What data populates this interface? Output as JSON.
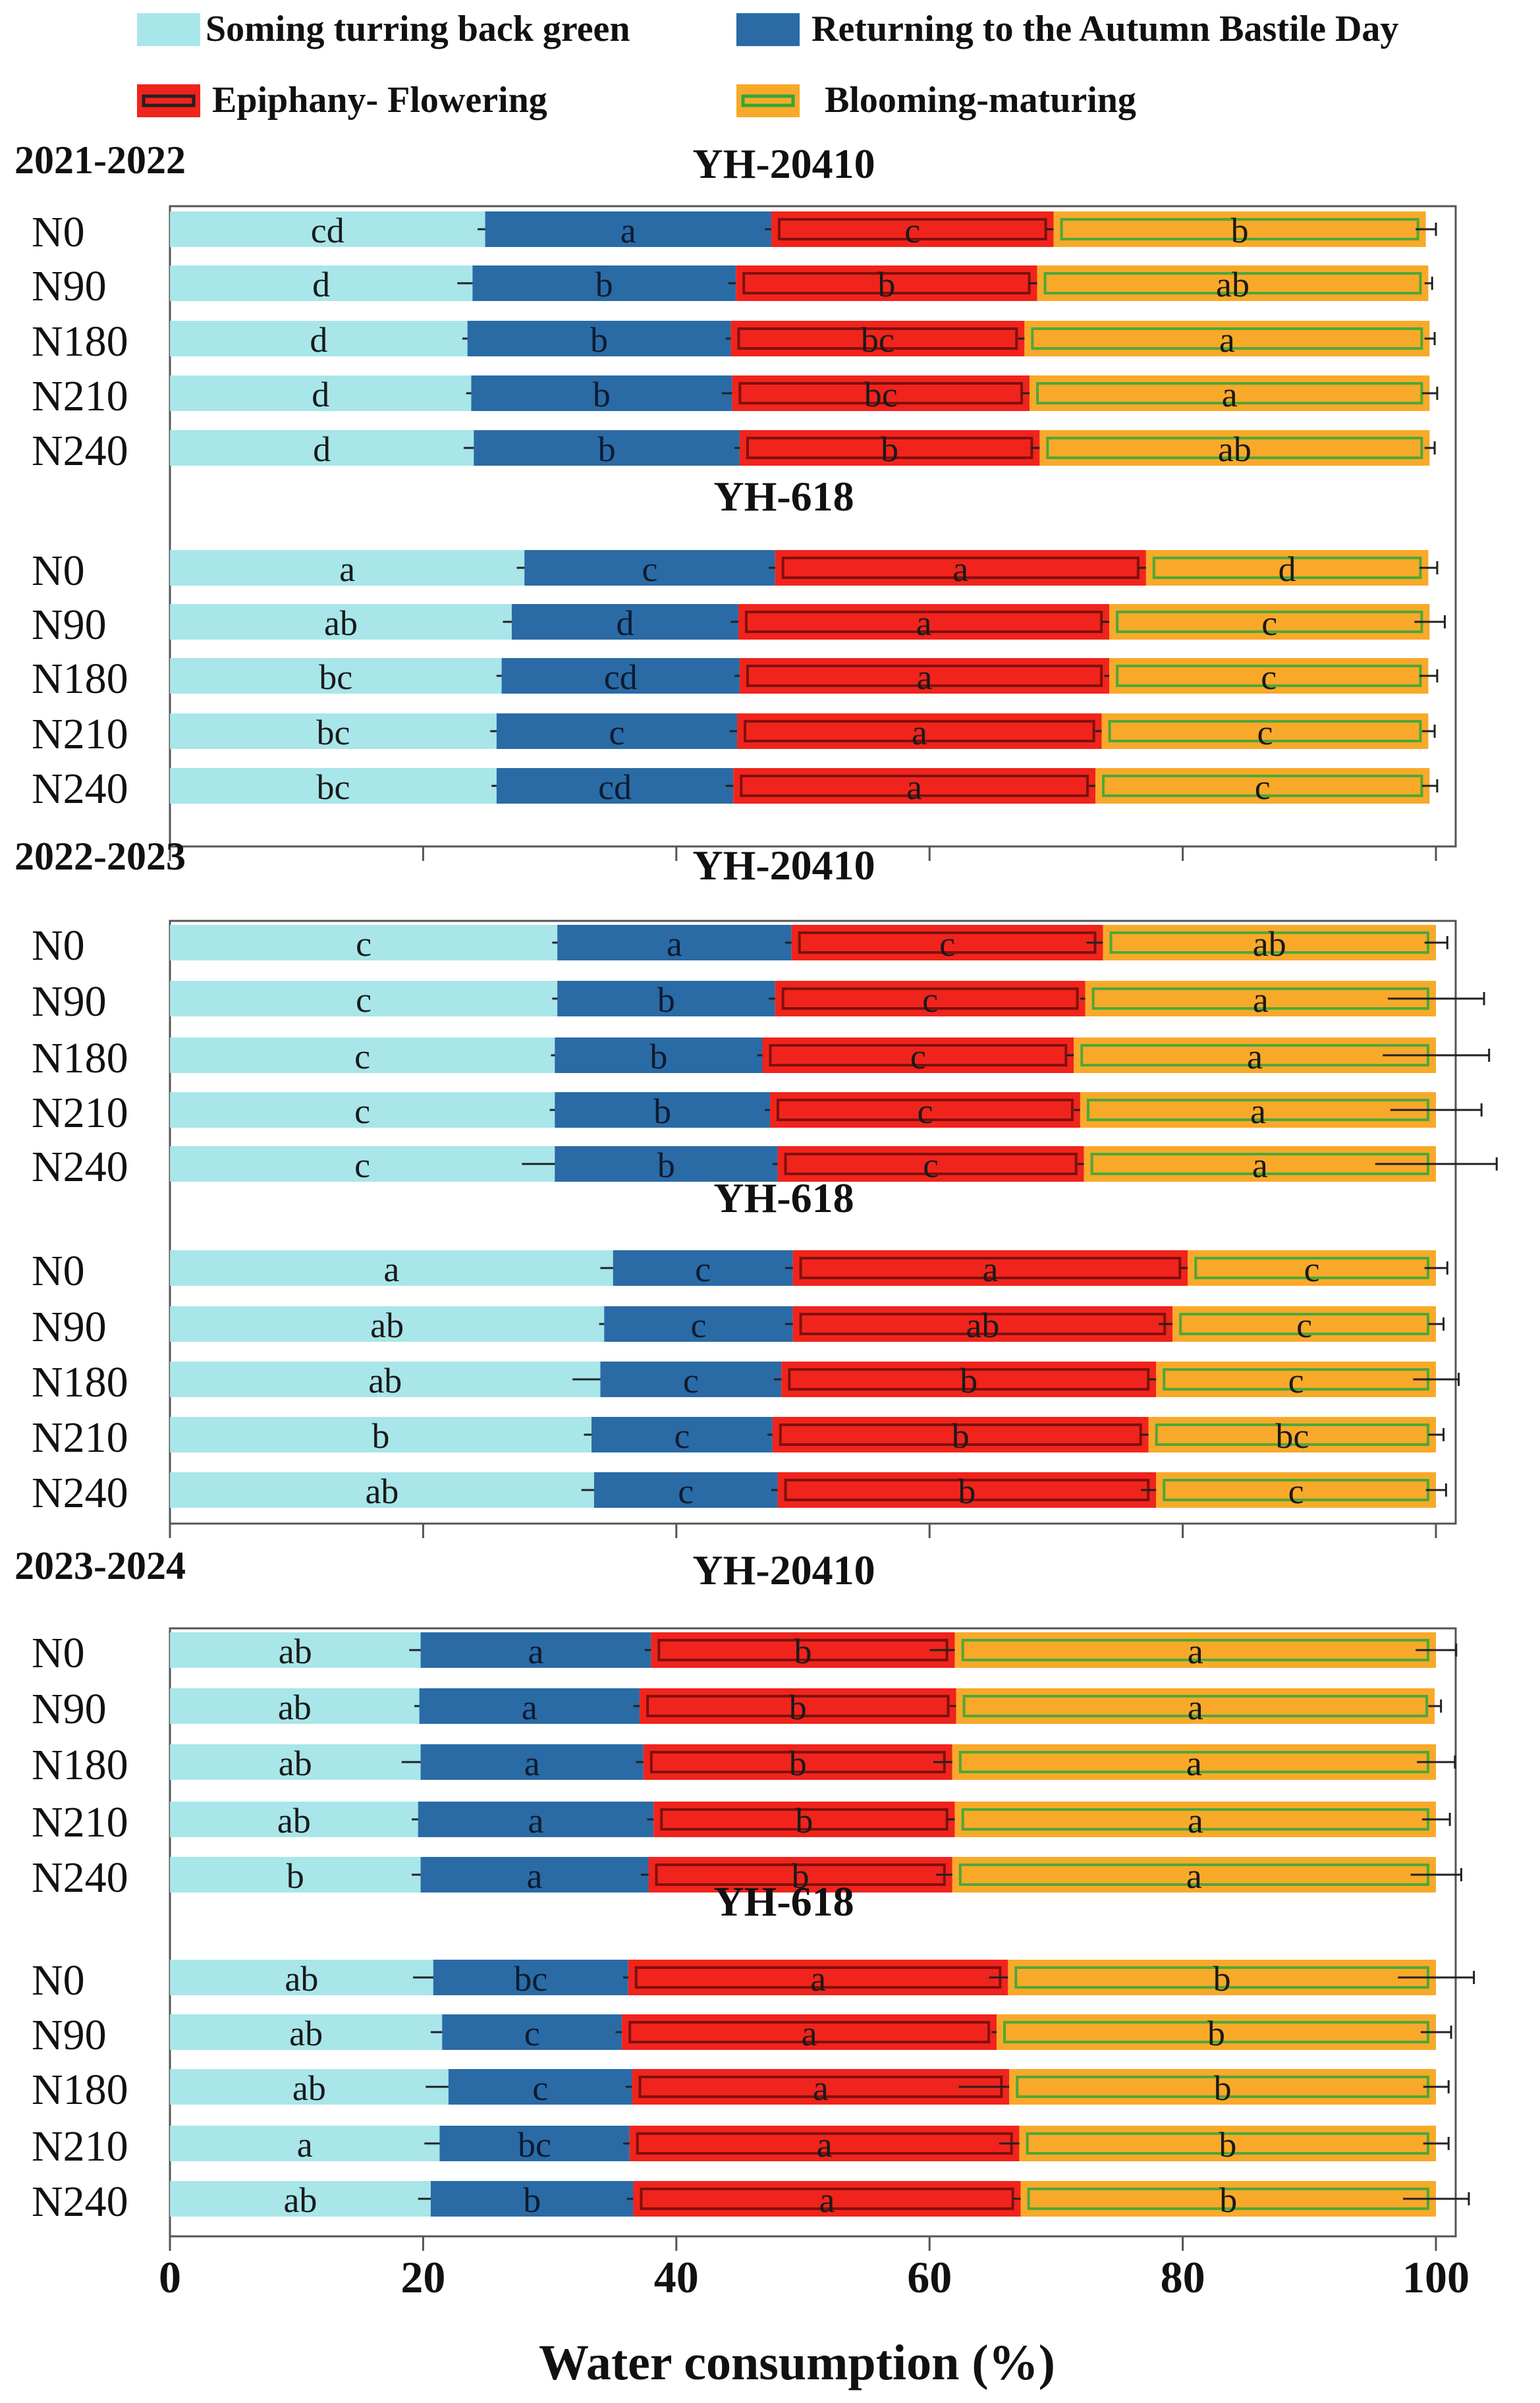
{
  "chart_data": {
    "type": "bar",
    "orientation": "horizontal",
    "stacked": true,
    "xlabel": "Water consumption (%)",
    "xlim": [
      0,
      100
    ],
    "xticks": [
      "0",
      "20",
      "40",
      "60",
      "80",
      "100"
    ],
    "legend": [
      {
        "name": "Soming turring back green",
        "color": "#a8e6ea"
      },
      {
        "name": "Returning to the Autumn Bastile Day",
        "color": "#2a6ba6"
      },
      {
        "name": "Epiphany- Flowering",
        "color": "#f0241c"
      },
      {
        "name": "Blooming-maturing",
        "color": "#f9a929"
      }
    ],
    "colors": {
      "green_up": "#a8e6ea",
      "autumn": "#2a6ba6",
      "flowering": "#f0241c",
      "maturing": "#f9a929",
      "hatch": "#2fa83c"
    },
    "panels": [
      {
        "period": "2021-2022",
        "groups": [
          {
            "name": "YH-20410",
            "rows": [
              {
                "label": "N0",
                "values": [
                  24.9,
                  22.6,
                  22.3,
                  29.4
                ],
                "letters": [
                  "cd",
                  "a",
                  "c",
                  "b"
                ],
                "errors": [
                  0.6,
                  0.5,
                  0.6,
                  0.8
                ]
              },
              {
                "label": "N90",
                "values": [
                  23.9,
                  20.8,
                  23.8,
                  30.9
                ],
                "letters": [
                  "d",
                  "b",
                  "b",
                  "ab"
                ],
                "errors": [
                  1.2,
                  0.6,
                  0.7,
                  0.3
                ]
              },
              {
                "label": "N180",
                "values": [
                  23.5,
                  20.8,
                  23.2,
                  32.0
                ],
                "letters": [
                  "d",
                  "b",
                  "bc",
                  "a"
                ],
                "errors": [
                  0.4,
                  0.4,
                  0.5,
                  0.4
                ]
              },
              {
                "label": "N210",
                "values": [
                  23.8,
                  20.6,
                  23.5,
                  31.6
                ],
                "letters": [
                  "d",
                  "b",
                  "bc",
                  "a"
                ],
                "errors": [
                  0.4,
                  0.8,
                  0.6,
                  0.6
                ]
              },
              {
                "label": "N240",
                "values": [
                  24.0,
                  21.0,
                  23.7,
                  30.8
                ],
                "letters": [
                  "d",
                  "b",
                  "b",
                  "ab"
                ],
                "errors": [
                  0.8,
                  0.4,
                  0.7,
                  0.4
                ]
              }
            ]
          },
          {
            "name": "YH-618",
            "rows": [
              {
                "label": "N0",
                "values": [
                  28.0,
                  19.8,
                  29.3,
                  22.3
                ],
                "letters": [
                  "a",
                  "c",
                  "a",
                  "d"
                ],
                "errors": [
                  0.6,
                  0.5,
                  0.6,
                  0.7
                ]
              },
              {
                "label": "N90",
                "values": [
                  27.0,
                  17.9,
                  29.3,
                  25.3
                ],
                "letters": [
                  "ab",
                  "d",
                  "a",
                  "c"
                ],
                "errors": [
                  0.7,
                  0.6,
                  0.6,
                  1.2
                ]
              },
              {
                "label": "N180",
                "values": [
                  26.2,
                  18.8,
                  29.2,
                  25.2
                ],
                "letters": [
                  "bc",
                  "cd",
                  "a",
                  "c"
                ],
                "errors": [
                  0.4,
                  0.4,
                  0.4,
                  0.7
                ]
              },
              {
                "label": "N210",
                "values": [
                  25.8,
                  19.0,
                  28.8,
                  25.8
                ],
                "letters": [
                  "bc",
                  "c",
                  "a",
                  "c"
                ],
                "errors": [
                  0.5,
                  0.6,
                  0.5,
                  0.5
                ]
              },
              {
                "label": "N240",
                "values": [
                  25.8,
                  18.7,
                  28.6,
                  26.4
                ],
                "letters": [
                  "bc",
                  "cd",
                  "a",
                  "c"
                ],
                "errors": [
                  0.4,
                  0.6,
                  0.5,
                  0.6
                ]
              }
            ]
          }
        ]
      },
      {
        "period": "2022-2023",
        "groups": [
          {
            "name": "YH-20410",
            "rows": [
              {
                "label": "N0",
                "values": [
                  30.6,
                  18.5,
                  24.6,
                  26.3
                ],
                "letters": [
                  "c",
                  "a",
                  "c",
                  "ab"
                ],
                "errors": [
                  0.4,
                  0.5,
                  1.3,
                  0.9
                ]
              },
              {
                "label": "N90",
                "values": [
                  30.6,
                  17.2,
                  24.5,
                  27.7
                ],
                "letters": [
                  "c",
                  "b",
                  "c",
                  "a"
                ],
                "errors": [
                  0.4,
                  0.5,
                  0.4,
                  3.8
                ]
              },
              {
                "label": "N180",
                "values": [
                  30.4,
                  16.4,
                  24.6,
                  28.6
                ],
                "letters": [
                  "c",
                  "b",
                  "c",
                  "a"
                ],
                "errors": [
                  0.3,
                  0.4,
                  0.6,
                  4.2
                ]
              },
              {
                "label": "N210",
                "values": [
                  30.4,
                  17.0,
                  24.5,
                  28.1
                ],
                "letters": [
                  "c",
                  "b",
                  "c",
                  "a"
                ],
                "errors": [
                  0.4,
                  0.4,
                  0.5,
                  3.6
                ]
              },
              {
                "label": "N240",
                "values": [
                  30.4,
                  17.6,
                  24.2,
                  27.8
                ],
                "letters": [
                  "c",
                  "b",
                  "c",
                  "a"
                ],
                "errors": [
                  2.6,
                  0.4,
                  0.5,
                  4.8
                ]
              }
            ]
          },
          {
            "name": "YH-618",
            "rows": [
              {
                "label": "N0",
                "values": [
                  35.0,
                  14.2,
                  31.2,
                  19.6
                ],
                "letters": [
                  "a",
                  "c",
                  "a",
                  "c"
                ],
                "errors": [
                  1.0,
                  0.6,
                  0.6,
                  0.9
                ]
              },
              {
                "label": "N90",
                "values": [
                  34.3,
                  14.9,
                  30.0,
                  20.8
                ],
                "letters": [
                  "ab",
                  "c",
                  "ab",
                  "c"
                ],
                "errors": [
                  0.4,
                  0.6,
                  1.1,
                  0.6
                ]
              },
              {
                "label": "N180",
                "values": [
                  34.0,
                  14.3,
                  29.6,
                  22.1
                ],
                "letters": [
                  "ab",
                  "c",
                  "b",
                  "c"
                ],
                "errors": [
                  2.2,
                  0.6,
                  0.6,
                  1.8
                ]
              },
              {
                "label": "N210",
                "values": [
                  33.3,
                  14.3,
                  29.7,
                  22.7
                ],
                "letters": [
                  "b",
                  "c",
                  "b",
                  "bc"
                ],
                "errors": [
                  0.6,
                  0.4,
                  0.6,
                  0.6
                ]
              },
              {
                "label": "N240",
                "values": [
                  33.5,
                  14.5,
                  29.9,
                  22.1
                ],
                "letters": [
                  "ab",
                  "c",
                  "b",
                  "c"
                ],
                "errors": [
                  1.0,
                  0.5,
                  1.2,
                  0.8
                ]
              }
            ]
          }
        ]
      },
      {
        "period": "2023-2024",
        "groups": [
          {
            "name": "YH-20410",
            "rows": [
              {
                "label": "N0",
                "values": [
                  19.8,
                  18.2,
                  24.0,
                  38.0
                ],
                "letters": [
                  "ab",
                  "a",
                  "b",
                  "a"
                ],
                "errors": [
                  0.9,
                  0.5,
                  2.0,
                  1.6
                ]
              },
              {
                "label": "N90",
                "values": [
                  19.7,
                  17.4,
                  25.0,
                  37.8
                ],
                "letters": [
                  "ab",
                  "a",
                  "b",
                  "a"
                ],
                "errors": [
                  0.4,
                  0.5,
                  0.5,
                  0.5
                ]
              },
              {
                "label": "N180",
                "values": [
                  19.8,
                  17.6,
                  24.4,
                  38.2
                ],
                "letters": [
                  "ab",
                  "a",
                  "b",
                  "a"
                ],
                "errors": [
                  1.5,
                  0.6,
                  1.5,
                  1.5
                ]
              },
              {
                "label": "N210",
                "values": [
                  19.6,
                  18.6,
                  23.8,
                  38.0
                ],
                "letters": [
                  "ab",
                  "a",
                  "b",
                  "a"
                ],
                "errors": [
                  0.5,
                  0.5,
                  0.6,
                  1.1
                ]
              },
              {
                "label": "N240",
                "values": [
                  19.8,
                  18.0,
                  24.0,
                  38.2
                ],
                "letters": [
                  "b",
                  "a",
                  "b",
                  "a"
                ],
                "errors": [
                  0.7,
                  0.6,
                  1.3,
                  2.0
                ]
              }
            ]
          },
          {
            "name": "YH-618",
            "rows": [
              {
                "label": "N0",
                "values": [
                  20.8,
                  15.4,
                  30.0,
                  33.8
                ],
                "letters": [
                  "ab",
                  "bc",
                  "a",
                  "b"
                ],
                "errors": [
                  1.6,
                  0.4,
                  1.5,
                  3.0
                ]
              },
              {
                "label": "N90",
                "values": [
                  21.5,
                  14.2,
                  29.6,
                  34.7
                ],
                "letters": [
                  "ab",
                  "c",
                  "a",
                  "b"
                ],
                "errors": [
                  0.9,
                  0.5,
                  0.4,
                  1.2
                ]
              },
              {
                "label": "N180",
                "values": [
                  22.0,
                  14.5,
                  29.8,
                  33.7
                ],
                "letters": [
                  "ab",
                  "c",
                  "a",
                  "b"
                ],
                "errors": [
                  1.8,
                  0.5,
                  4.0,
                  1.0
                ]
              },
              {
                "label": "N210",
                "values": [
                  21.3,
                  15.0,
                  30.8,
                  32.9
                ],
                "letters": [
                  "a",
                  "bc",
                  "a",
                  "b"
                ],
                "errors": [
                  1.2,
                  0.5,
                  1.6,
                  1.0
                ]
              },
              {
                "label": "N240",
                "values": [
                  20.6,
                  16.0,
                  30.6,
                  32.8
                ],
                "letters": [
                  "ab",
                  "b",
                  "a",
                  "b"
                ],
                "errors": [
                  1.0,
                  0.5,
                  0.6,
                  2.6
                ]
              }
            ]
          }
        ]
      }
    ]
  }
}
